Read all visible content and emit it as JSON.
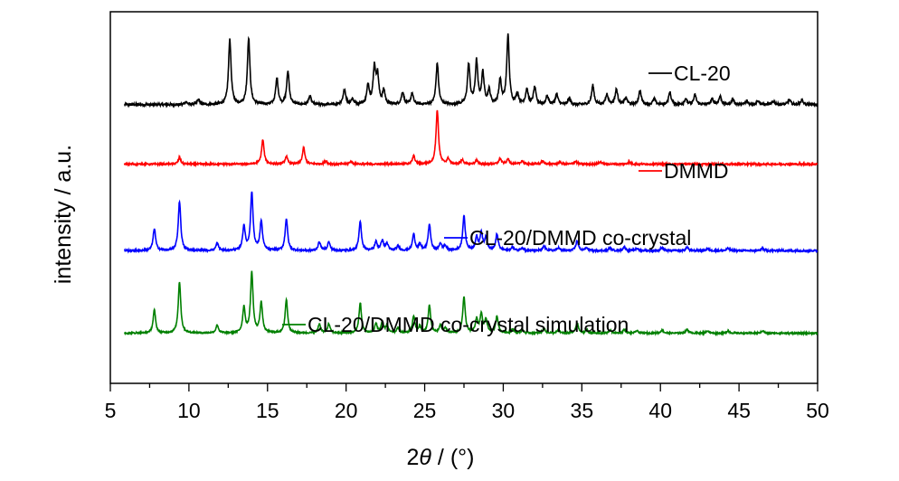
{
  "chart_data": {
    "type": "line",
    "xlabel_prefix": "2",
    "xlabel_symbol": "θ",
    "xlabel_suffix": " / (°)",
    "ylabel": "intensity / a.u.",
    "xlim": [
      5,
      50
    ],
    "x_ticks": [
      5,
      10,
      15,
      20,
      25,
      30,
      35,
      40,
      45,
      50
    ],
    "y_ticks_visible": false,
    "grid": false,
    "legend_placement": "inline-right",
    "series": [
      {
        "name": "CL-20",
        "color": "#000000",
        "baseline": 0.75,
        "scale": 0.185,
        "noise": 0.006,
        "peaks": [
          [
            9.8,
            0.04
          ],
          [
            10.6,
            0.07
          ],
          [
            12.6,
            0.95
          ],
          [
            13.8,
            0.97
          ],
          [
            15.6,
            0.38
          ],
          [
            16.3,
            0.48
          ],
          [
            17.7,
            0.12
          ],
          [
            19.9,
            0.22
          ],
          [
            20.4,
            0.08
          ],
          [
            21.4,
            0.28
          ],
          [
            21.8,
            0.52
          ],
          [
            22.0,
            0.4
          ],
          [
            22.4,
            0.2
          ],
          [
            23.6,
            0.18
          ],
          [
            24.2,
            0.16
          ],
          [
            25.8,
            0.6
          ],
          [
            27.8,
            0.58
          ],
          [
            28.3,
            0.62
          ],
          [
            28.7,
            0.45
          ],
          [
            29.1,
            0.2
          ],
          [
            29.8,
            0.35
          ],
          [
            30.3,
            1.0
          ],
          [
            30.9,
            0.15
          ],
          [
            31.5,
            0.22
          ],
          [
            32.0,
            0.25
          ],
          [
            32.8,
            0.12
          ],
          [
            33.4,
            0.15
          ],
          [
            34.2,
            0.08
          ],
          [
            35.7,
            0.28
          ],
          [
            36.6,
            0.15
          ],
          [
            37.2,
            0.22
          ],
          [
            37.8,
            0.1
          ],
          [
            38.7,
            0.2
          ],
          [
            39.6,
            0.08
          ],
          [
            40.6,
            0.18
          ],
          [
            41.6,
            0.08
          ],
          [
            42.2,
            0.14
          ],
          [
            43.3,
            0.08
          ],
          [
            43.8,
            0.12
          ],
          [
            44.6,
            0.08
          ],
          [
            45.5,
            0.05
          ],
          [
            46.2,
            0.06
          ],
          [
            47.2,
            0.05
          ],
          [
            48.2,
            0.07
          ],
          [
            49.0,
            0.07
          ]
        ]
      },
      {
        "name": "DMMD",
        "color": "#ff0000",
        "baseline": 0.59,
        "scale": 0.145,
        "noise": 0.005,
        "peaks": [
          [
            9.4,
            0.12
          ],
          [
            14.7,
            0.45
          ],
          [
            16.2,
            0.14
          ],
          [
            17.3,
            0.3
          ],
          [
            18.7,
            0.06
          ],
          [
            20.3,
            0.05
          ],
          [
            24.3,
            0.15
          ],
          [
            25.8,
            1.0
          ],
          [
            26.5,
            0.1
          ],
          [
            27.4,
            0.08
          ],
          [
            28.3,
            0.07
          ],
          [
            29.8,
            0.1
          ],
          [
            30.3,
            0.09
          ],
          [
            31.2,
            0.06
          ],
          [
            32.5,
            0.05
          ],
          [
            33.6,
            0.04
          ],
          [
            34.6,
            0.05
          ],
          [
            36.2,
            0.04
          ],
          [
            38.0,
            0.04
          ]
        ]
      },
      {
        "name": "CL-20/DMMD co-crystal",
        "color": "#0000ff",
        "baseline": 0.357,
        "scale": 0.156,
        "noise": 0.005,
        "peaks": [
          [
            7.8,
            0.38
          ],
          [
            9.4,
            0.85
          ],
          [
            11.8,
            0.13
          ],
          [
            13.5,
            0.42
          ],
          [
            14.0,
            1.0
          ],
          [
            14.6,
            0.5
          ],
          [
            16.2,
            0.55
          ],
          [
            18.3,
            0.15
          ],
          [
            18.9,
            0.15
          ],
          [
            20.9,
            0.5
          ],
          [
            21.9,
            0.15
          ],
          [
            22.3,
            0.17
          ],
          [
            22.6,
            0.12
          ],
          [
            23.3,
            0.08
          ],
          [
            24.3,
            0.28
          ],
          [
            24.7,
            0.1
          ],
          [
            25.3,
            0.45
          ],
          [
            26.0,
            0.12
          ],
          [
            26.3,
            0.08
          ],
          [
            27.5,
            0.6
          ],
          [
            28.3,
            0.22
          ],
          [
            28.6,
            0.3
          ],
          [
            28.9,
            0.22
          ],
          [
            29.6,
            0.28
          ],
          [
            30.6,
            0.06
          ],
          [
            31.2,
            0.05
          ],
          [
            32.6,
            0.08
          ],
          [
            33.5,
            0.05
          ],
          [
            34.7,
            0.17
          ],
          [
            35.3,
            0.05
          ],
          [
            36.8,
            0.05
          ],
          [
            37.7,
            0.06
          ],
          [
            38.5,
            0.04
          ],
          [
            40.1,
            0.05
          ],
          [
            41.7,
            0.06
          ],
          [
            43.0,
            0.04
          ],
          [
            44.3,
            0.04
          ],
          [
            46.5,
            0.04
          ]
        ]
      },
      {
        "name": "CL-20/DMMD co-crystal simulation",
        "color": "#008000",
        "baseline": 0.135,
        "scale": 0.163,
        "noise": 0.004,
        "peaks": [
          [
            7.8,
            0.38
          ],
          [
            9.4,
            0.85
          ],
          [
            11.8,
            0.13
          ],
          [
            13.5,
            0.42
          ],
          [
            14.0,
            1.0
          ],
          [
            14.6,
            0.5
          ],
          [
            16.2,
            0.55
          ],
          [
            18.3,
            0.15
          ],
          [
            18.9,
            0.15
          ],
          [
            20.9,
            0.5
          ],
          [
            21.9,
            0.15
          ],
          [
            22.3,
            0.17
          ],
          [
            22.6,
            0.12
          ],
          [
            23.3,
            0.08
          ],
          [
            24.3,
            0.28
          ],
          [
            24.7,
            0.1
          ],
          [
            25.3,
            0.45
          ],
          [
            26.0,
            0.12
          ],
          [
            26.3,
            0.08
          ],
          [
            27.5,
            0.6
          ],
          [
            28.3,
            0.22
          ],
          [
            28.6,
            0.3
          ],
          [
            28.9,
            0.22
          ],
          [
            29.6,
            0.28
          ],
          [
            30.6,
            0.06
          ],
          [
            31.2,
            0.05
          ],
          [
            32.6,
            0.08
          ],
          [
            33.5,
            0.05
          ],
          [
            34.7,
            0.17
          ],
          [
            35.3,
            0.05
          ],
          [
            36.8,
            0.05
          ],
          [
            37.7,
            0.06
          ],
          [
            38.5,
            0.04
          ],
          [
            40.1,
            0.05
          ],
          [
            41.7,
            0.06
          ],
          [
            43.0,
            0.04
          ],
          [
            44.3,
            0.04
          ],
          [
            46.5,
            0.04
          ]
        ]
      }
    ]
  }
}
